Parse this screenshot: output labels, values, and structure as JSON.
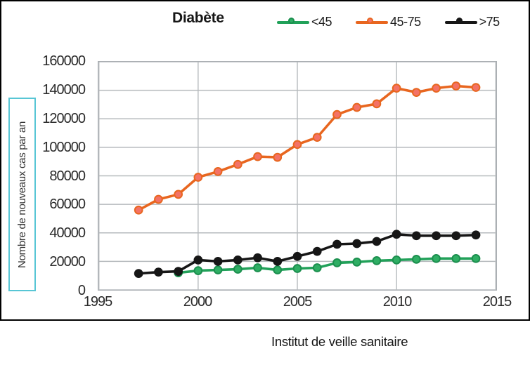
{
  "chart_data": {
    "type": "line",
    "title": "Diabète",
    "caption": "Institut de veille sanitaire",
    "ylabel": "Nombre de nouveaux cas par an",
    "xlabel": "",
    "xlim": [
      1995,
      2015
    ],
    "ylim": [
      0,
      160000
    ],
    "x_ticks": [
      1995,
      2000,
      2005,
      2010,
      2015
    ],
    "y_ticks": [
      0,
      20000,
      40000,
      60000,
      80000,
      100000,
      120000,
      140000,
      160000
    ],
    "grid": true,
    "legend_position": "top",
    "x": [
      1997,
      1998,
      1999,
      2000,
      2001,
      2002,
      2003,
      2004,
      2005,
      2006,
      2007,
      2008,
      2009,
      2010,
      2011,
      2012,
      2013,
      2014
    ],
    "series": [
      {
        "name": "<45",
        "line_color": "#21a159",
        "marker_fill": "#2fae64",
        "marker_stroke": "#1b8f4e",
        "values": [
          null,
          null,
          12000,
          13500,
          14000,
          14500,
          15500,
          14000,
          15000,
          15500,
          19000,
          19500,
          20500,
          21000,
          21500,
          22000,
          22000,
          22000
        ]
      },
      {
        "name": "45-75",
        "line_color": "#e8661f",
        "marker_fill": "#f37266",
        "marker_stroke": "#e8661f",
        "values": [
          56000,
          63500,
          67000,
          79000,
          83000,
          88000,
          93500,
          93000,
          102000,
          107000,
          123000,
          128000,
          130500,
          141500,
          138500,
          141500,
          143000,
          142000
        ]
      },
      {
        "name": ">75",
        "line_color": "#161616",
        "marker_fill": "#161616",
        "marker_stroke": "#161616",
        "values": [
          11500,
          12500,
          13000,
          21000,
          20000,
          21000,
          22500,
          20000,
          23500,
          27000,
          32000,
          32500,
          34000,
          39000,
          38000,
          38000,
          38000,
          38500
        ]
      }
    ],
    "grid_color": "#b6babd",
    "tick_color": "#2a2a2a"
  }
}
